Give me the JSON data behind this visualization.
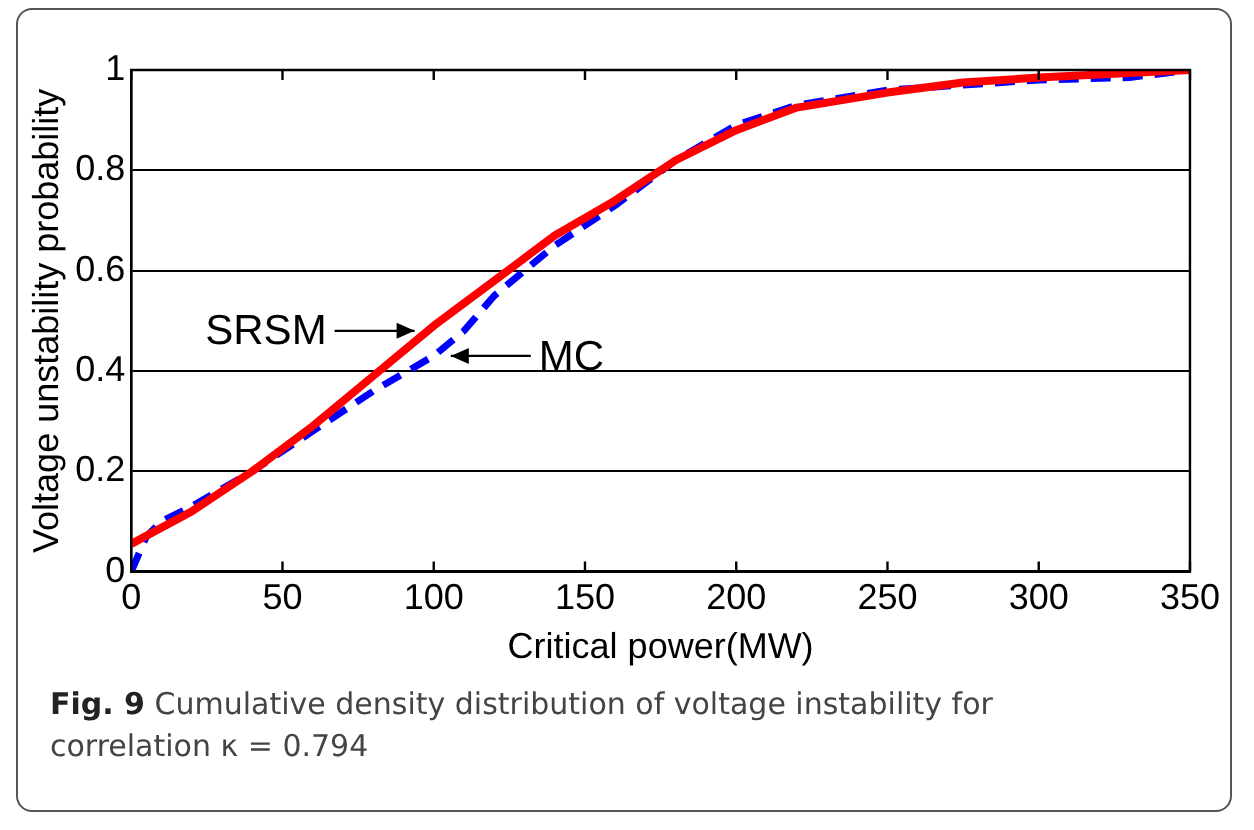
{
  "chart_data": {
    "type": "line",
    "xlabel": "Critical power(MW)",
    "ylabel": "Voltage unstability probability",
    "xlim": [
      0,
      350
    ],
    "xticks": [
      0,
      50,
      100,
      150,
      200,
      250,
      300,
      350
    ],
    "ylim": [
      0,
      1
    ],
    "yticks": [
      0,
      0.2,
      0.4,
      0.6,
      0.8,
      1
    ],
    "grid": "y",
    "legend": false,
    "series": [
      {
        "color": "#ff0000",
        "line_style": "solid",
        "x": [
          0,
          20,
          40,
          60,
          80,
          100,
          120,
          140,
          160,
          180,
          200,
          220,
          250,
          275,
          300,
          350
        ],
        "values": [
          0.055,
          0.12,
          0.2,
          0.29,
          0.39,
          0.49,
          0.58,
          0.67,
          0.74,
          0.82,
          0.88,
          0.925,
          0.955,
          0.975,
          0.985,
          1.0
        ]
      },
      {
        "color": "#0000ff",
        "line_style": "dashed",
        "x": [
          0,
          5,
          10,
          20,
          40,
          60,
          80,
          100,
          110,
          120,
          140,
          160,
          180,
          200,
          220,
          250,
          275,
          300,
          330,
          350
        ],
        "values": [
          0,
          0.07,
          0.1,
          0.13,
          0.2,
          0.28,
          0.36,
          0.43,
          0.48,
          0.55,
          0.65,
          0.73,
          0.82,
          0.89,
          0.93,
          0.96,
          0.97,
          0.98,
          0.985,
          1.0
        ]
      }
    ],
    "annotations": [
      {
        "text": "SRSM",
        "x": 95,
        "y": 0.48
      },
      {
        "text": "MC",
        "x": 103,
        "y": 0.43
      },
      "Fig. 9 Cumulative density distribution of voltage instability for correlation κ = 0.794"
    ]
  }
}
